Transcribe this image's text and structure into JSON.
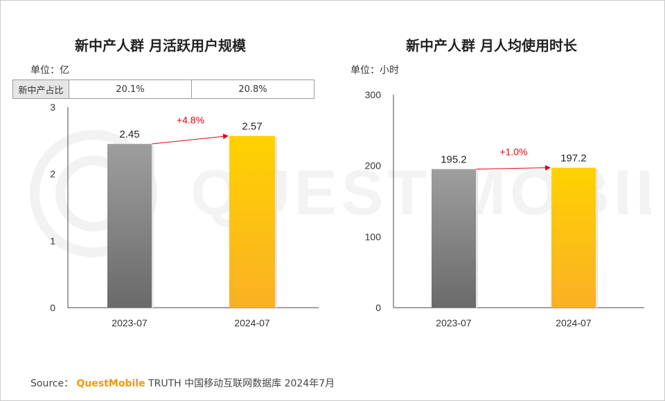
{
  "watermark": {
    "text": "QUEST MOBILE"
  },
  "left_chart": {
    "title": "新中产人群 月活跃用户规模",
    "unit": "单位：亿",
    "share_row": {
      "label": "新中产占比",
      "values": [
        "20.1%",
        "20.8%"
      ]
    }
  },
  "right_chart": {
    "title": "新中产人群 月人均使用时长",
    "unit": "单位：小时"
  },
  "source": {
    "prefix": "Source：",
    "brand": "QuestMobile",
    "rest": "TRUTH 中国移动互联网数据库 2024年7月"
  },
  "colors": {
    "gray_top": "#9e9e9e",
    "gray_bottom": "#6a6a6a",
    "gold_top": "#ffd200",
    "gold_bottom": "#fbb025",
    "growth": "#e60012"
  },
  "chart_data": [
    {
      "type": "bar",
      "title": "新中产人群 月活跃用户规模",
      "categories": [
        "2023-07",
        "2024-07"
      ],
      "values": [
        2.45,
        2.57
      ],
      "value_labels": [
        "2.45",
        "2.57"
      ],
      "ylim": [
        0,
        3
      ],
      "yticks": [
        0,
        1,
        2,
        3
      ],
      "ytick_labels": [
        "0",
        "1",
        "2",
        "3"
      ],
      "growth_label": "+4.8%"
    },
    {
      "type": "bar",
      "title": "新中产人群 月人均使用时长",
      "categories": [
        "2023-07",
        "2024-07"
      ],
      "values": [
        195.2,
        197.2
      ],
      "value_labels": [
        "195.2",
        "197.2"
      ],
      "ylim": [
        0,
        300
      ],
      "yticks": [
        0,
        100,
        200,
        300
      ],
      "ytick_labels": [
        "0",
        "100",
        "200",
        "300"
      ],
      "growth_label": "+1.0%"
    }
  ]
}
